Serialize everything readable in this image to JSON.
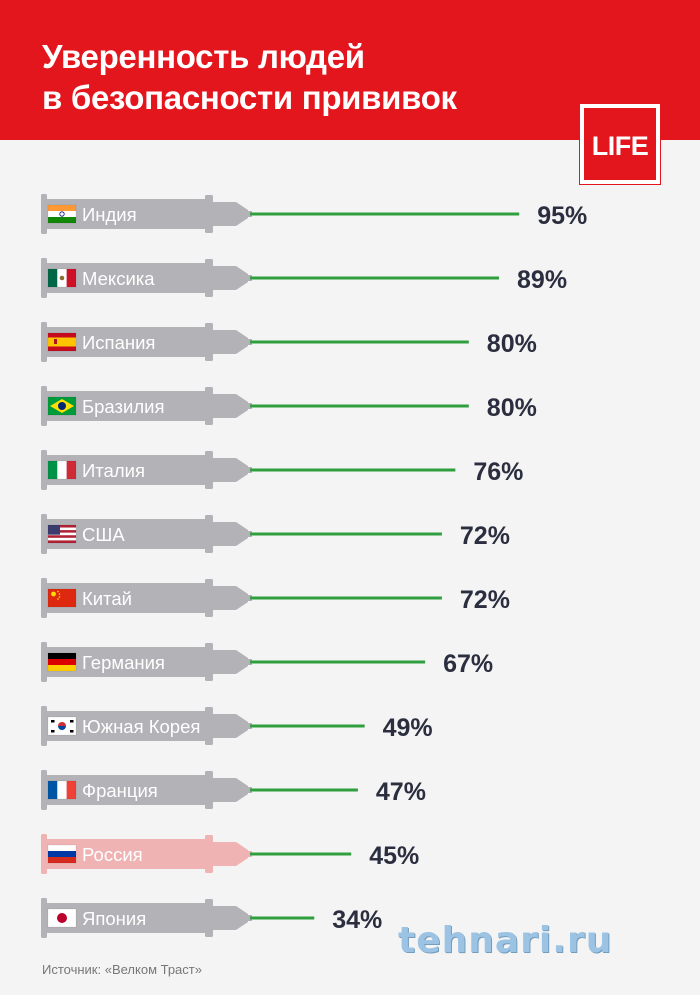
{
  "header": {
    "title_line1": "Уверенность людей",
    "title_line2": "в безопасности прививок",
    "logo": "LIFE"
  },
  "chart_data": {
    "type": "bar",
    "title": "Уверенность людей в безопасности прививок",
    "unit": "%",
    "categories": [
      "Индия",
      "Мексика",
      "Испания",
      "Бразилия",
      "Италия",
      "США",
      "Китай",
      "Германия",
      "Южная Корея",
      "Франция",
      "Россия",
      "Япония"
    ],
    "values": [
      95,
      89,
      80,
      80,
      76,
      72,
      72,
      67,
      49,
      47,
      45,
      34
    ],
    "value_labels": [
      "95%",
      "89%",
      "80%",
      "80%",
      "76%",
      "72%",
      "72%",
      "67%",
      "49%",
      "47%",
      "45%",
      "34%"
    ],
    "flags": [
      "flag-india",
      "flag-mexico",
      "flag-spain",
      "flag-brazil",
      "flag-italy",
      "flag-usa",
      "flag-china",
      "flag-germany",
      "flag-south-korea",
      "flag-france",
      "flag-russia",
      "flag-japan"
    ],
    "highlight": "Россия",
    "colors": {
      "syringe": "#b3b3b7",
      "syringe_highlight": "#f0b3b3",
      "needle": "#2e9e3e",
      "value_text": "#2b2e3f",
      "accent": "#e3161e"
    }
  },
  "footer": {
    "source": "Источник: «Велком Траст»",
    "watermark": "tehnari.ru"
  }
}
